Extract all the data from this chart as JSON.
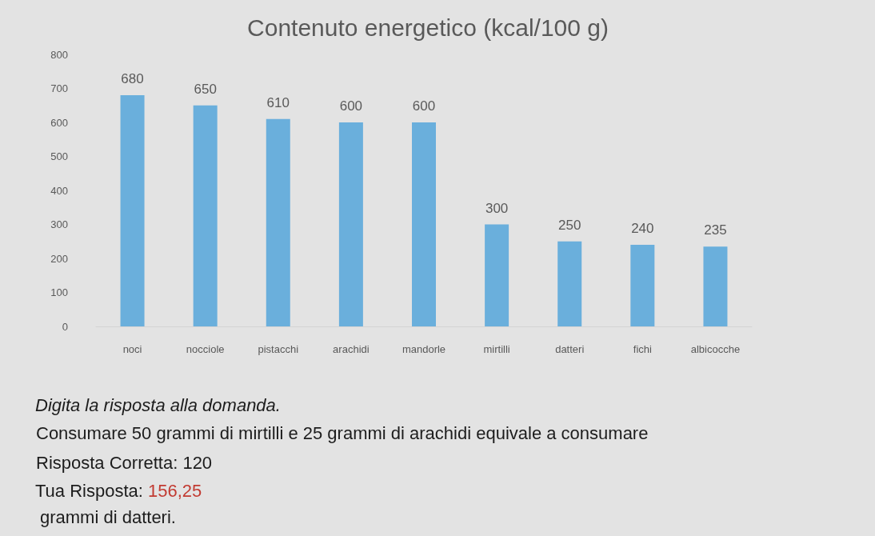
{
  "chart_data": {
    "type": "bar",
    "title": "Contenuto energetico (kcal/100 g)",
    "categories": [
      "noci",
      "nocciole",
      "pistacchi",
      "arachidi",
      "mandorle",
      "mirtilli",
      "datteri",
      "fichi",
      "albicocche"
    ],
    "values": [
      680,
      650,
      610,
      600,
      600,
      300,
      250,
      240,
      235
    ],
    "color": "#6aafdc",
    "ylim": [
      0,
      800
    ],
    "yticks": [
      0,
      100,
      200,
      300,
      400,
      500,
      600,
      700,
      800
    ],
    "data_labels": true,
    "annotations": [
      "Digita la risposta alla domanda.",
      "Consumare 50 grammi di mirtilli e 25 grammi di arachidi equivale a consumare",
      "Risposta Corretta: 120",
      "Tua Risposta: 156,25",
      "grammi di datteri."
    ]
  }
}
